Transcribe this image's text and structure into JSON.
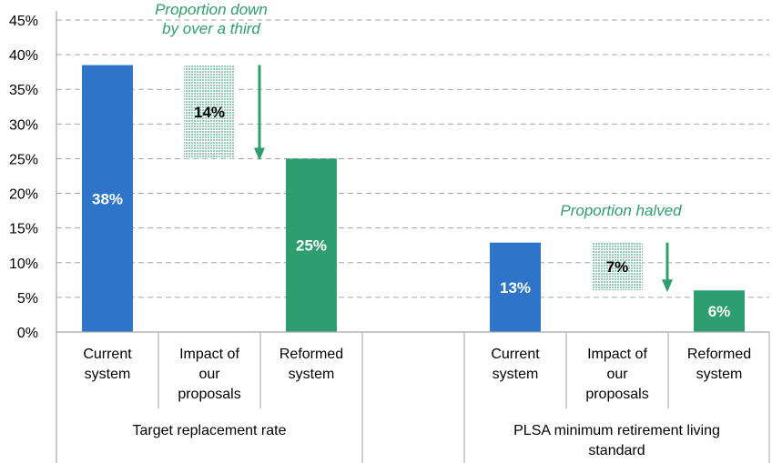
{
  "chart_data": {
    "type": "bar",
    "subtype": "waterfall",
    "ylim": [
      0,
      45
    ],
    "y_ticks": [
      "0%",
      "5%",
      "10%",
      "15%",
      "20%",
      "25%",
      "30%",
      "35%",
      "40%",
      "45%"
    ],
    "grid": "horizontal dashed",
    "groups": [
      {
        "label": "Target replacement rate",
        "annotation": [
          "Proportion down",
          "by over a third"
        ],
        "bars": [
          {
            "category": [
              "Current",
              "system"
            ],
            "kind": "total",
            "value": 38.5,
            "label": "38%",
            "color": "#2e75c9"
          },
          {
            "category": [
              "Impact of",
              "our",
              "proposals"
            ],
            "kind": "change",
            "from": 38.5,
            "to": 25,
            "label": "14%",
            "color": "#a8d5c3"
          },
          {
            "category": [
              "Reformed",
              "system"
            ],
            "kind": "total",
            "value": 25,
            "label": "25%",
            "color": "#2e9e6e"
          }
        ]
      },
      {
        "label": "PLSA minimum retirement living standard",
        "label_lines": [
          "PLSA minimum retirement living",
          "standard"
        ],
        "annotation": [
          "Proportion halved"
        ],
        "bars": [
          {
            "category": [
              "Current",
              "system"
            ],
            "kind": "total",
            "value": 12.9,
            "label": "13%",
            "color": "#2e75c9"
          },
          {
            "category": [
              "Impact of",
              "our",
              "proposals"
            ],
            "kind": "change",
            "from": 12.9,
            "to": 6,
            "label": "7%",
            "color": "#a8d5c3"
          },
          {
            "category": [
              "Reformed",
              "system"
            ],
            "kind": "total",
            "value": 6,
            "label": "6%",
            "color": "#2e9e6e"
          }
        ]
      }
    ],
    "colors": {
      "arrow": "#2e9e6e",
      "annotation": "#2e9e6e",
      "value_on_total": "#ffffff",
      "value_on_change": "#000000"
    }
  }
}
